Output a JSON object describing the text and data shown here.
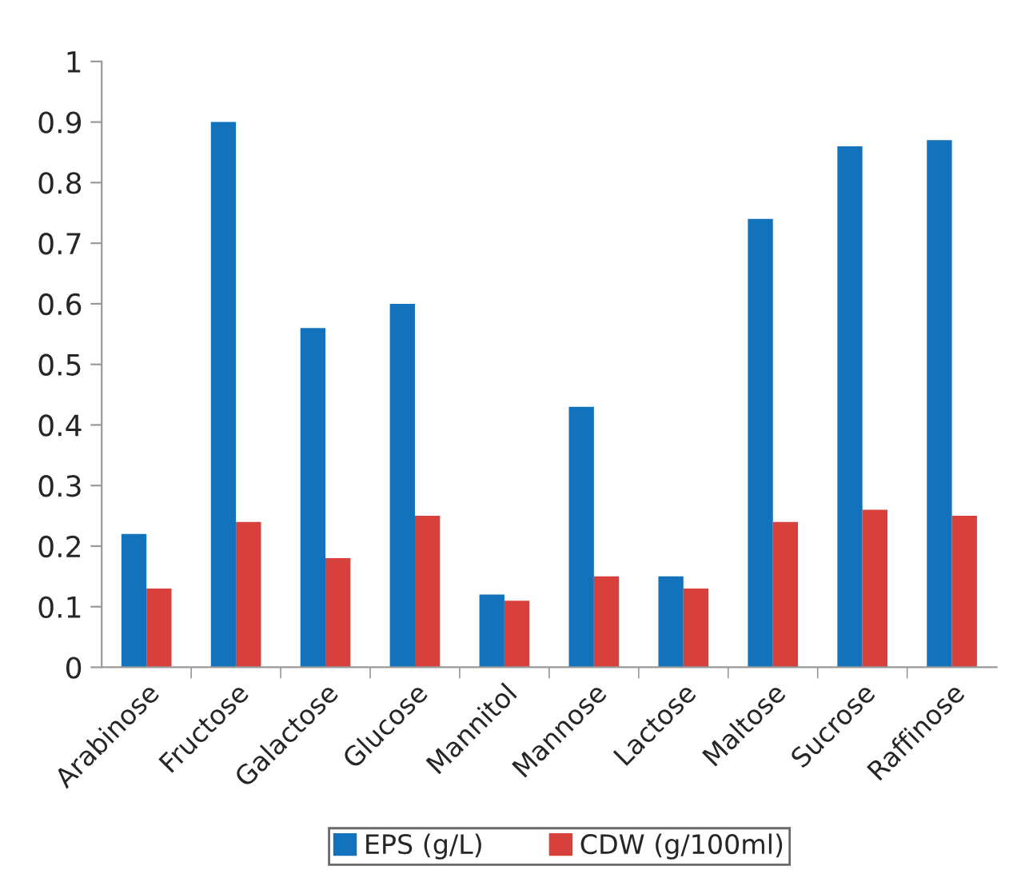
{
  "chart_data": {
    "type": "bar",
    "categories": [
      "Arabinose",
      "Fructose",
      "Galactose",
      "Glucose",
      "Mannitol",
      "Mannose",
      "Lactose",
      "Maltose",
      "Sucrose",
      "Raffinose"
    ],
    "series": [
      {
        "name": "EPS (g/L)",
        "color": "#1272bb",
        "values": [
          0.22,
          0.9,
          0.56,
          0.6,
          0.12,
          0.43,
          0.15,
          0.74,
          0.86,
          0.87
        ]
      },
      {
        "name": "CDW (g/100ml)",
        "color": "#d8403c",
        "values": [
          0.13,
          0.24,
          0.18,
          0.25,
          0.11,
          0.15,
          0.13,
          0.24,
          0.26,
          0.25
        ]
      }
    ],
    "ylim": [
      0,
      1
    ],
    "yticks": [
      0,
      0.1,
      0.2,
      0.3,
      0.4,
      0.5,
      0.6,
      0.7,
      0.8,
      0.9,
      1
    ],
    "grid": false,
    "legend": "bottom"
  }
}
